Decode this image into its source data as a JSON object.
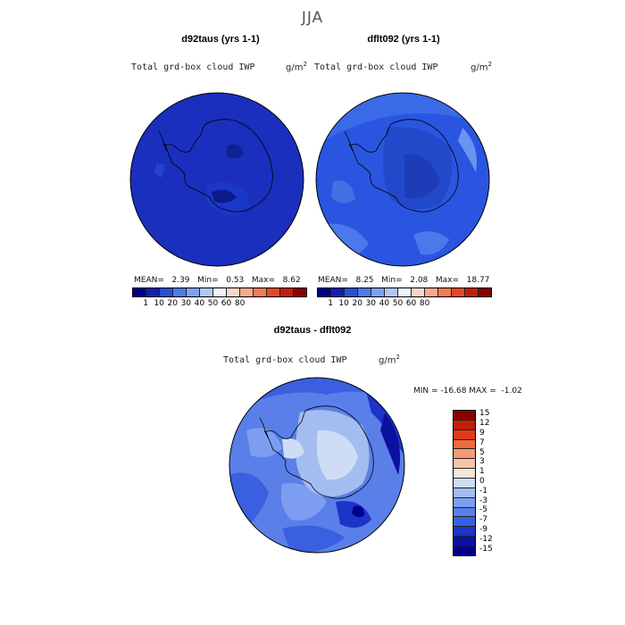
{
  "season": "JJA",
  "panels": [
    {
      "case_title": "d92taus (yrs 1-1)",
      "variable": "Total grd-box cloud IWP",
      "units_base": "g/m",
      "units_exp": "2",
      "stats": {
        "mean_label": "MEAN=",
        "mean": "2.39",
        "min_label": "Min=",
        "min": "0.53",
        "max_label": "Max=",
        "max": "8.62"
      },
      "background_color": "#1a2fbd"
    },
    {
      "case_title": "dflt092 (yrs 1-1)",
      "variable": "Total grd-box cloud IWP",
      "units_base": "g/m",
      "units_exp": "2",
      "stats": {
        "mean_label": "MEAN=",
        "mean": "8.25",
        "min_label": "Min=",
        "min": "2.08",
        "max_label": "Max=",
        "max": "18.77"
      },
      "background_color": "#2a55e0"
    }
  ],
  "abs_colorbar": {
    "colors": [
      "#00008b",
      "#1020b0",
      "#2a4fd0",
      "#4f7ae8",
      "#7ea2f0",
      "#b0c8f4",
      "#eef2fa",
      "#f7d8c8",
      "#f4ab8c",
      "#f07d58",
      "#e04a26",
      "#c01e08",
      "#8b0000"
    ],
    "tick_labels": [
      "1",
      "10",
      "20",
      "30",
      "40",
      "50",
      "60",
      "80"
    ]
  },
  "diff": {
    "title": "d92taus - dflt092",
    "variable": "Total grd-box cloud IWP",
    "units_base": "g/m",
    "units_exp": "2",
    "min_max_text": "MIN = -16.68 MAX =  -1.02",
    "colors": [
      "#8b0000",
      "#c01e08",
      "#e03a1e",
      "#f06a3e",
      "#f59a78",
      "#f8c4aa",
      "#f5e4d8",
      "#cfdcf6",
      "#a4bdf0",
      "#7d9ef0",
      "#5a7fe8",
      "#3a5fe0",
      "#1c34c8",
      "#0a10a0",
      "#00008b"
    ],
    "tick_labels": [
      "15",
      "12",
      "9",
      "7",
      "5",
      "3",
      "1",
      "0",
      "-1",
      "-3",
      "-5",
      "-7",
      "-9",
      "-12",
      "-15"
    ]
  }
}
